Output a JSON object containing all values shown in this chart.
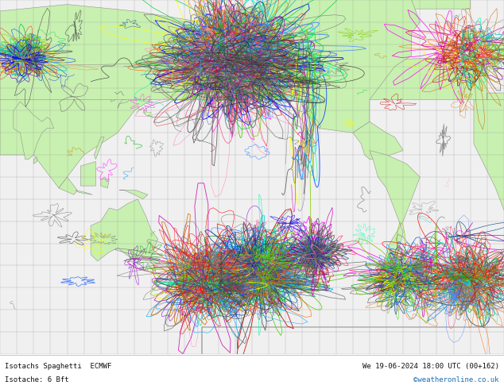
{
  "title_bottom": "Isotachs Spaghetti  ECMWF",
  "datetime_str": "We 19-06-2024 18:00 UTC (00+162)",
  "isoline_label": "Isotache: 6 Bft",
  "credit": "©weatheronline.co.uk",
  "bg_land": "#c8f0b0",
  "bg_sea": "#e8e8e8",
  "grid_color": "#999999",
  "coast_color": "#888888",
  "fig_width": 6.34,
  "fig_height": 4.9,
  "dpi": 100,
  "bottom_bar_color": "#ffffff",
  "bottom_text_color": "#111111",
  "credit_color": "#1a6eb5",
  "map_bg": "#f0f0f0",
  "lon_min": 60,
  "lon_max": 360,
  "lat_min": -80,
  "lat_max": 80
}
